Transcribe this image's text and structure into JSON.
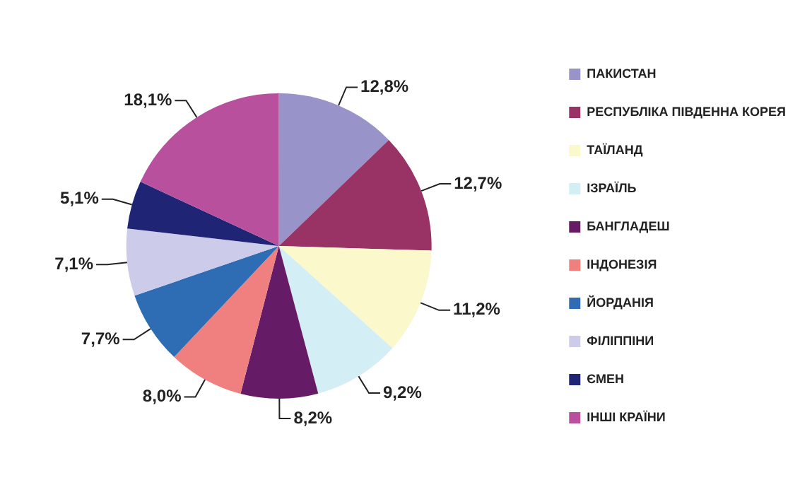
{
  "chart_data": {
    "type": "pie",
    "categories": [
      "ПАКИСТАН",
      "РЕСПУБЛІКА ПІВДЕННА КОРЕЯ",
      "ТАЇЛАНД",
      "ІЗРАЇЛЬ",
      "БАНГЛАДЕШ",
      "ІНДОНЕЗІЯ",
      "ЙОРДАНІЯ",
      "ФІЛІППІНИ",
      "ЄМЕН",
      "ІНШІ КРАЇНИ"
    ],
    "values": [
      12.8,
      12.7,
      11.2,
      9.2,
      8.2,
      8.0,
      7.7,
      7.1,
      5.1,
      18.1
    ],
    "colors": [
      "#9893c8",
      "#993366",
      "#fbf8cc",
      "#d4eef6",
      "#661b66",
      "#f08080",
      "#2e6db4",
      "#ccccea",
      "#1f2474",
      "#b9509e"
    ],
    "value_labels": [
      "12,8%",
      "12,7%",
      "11,2%",
      "9,2%",
      "8,2%",
      "8,0%",
      "7,7%",
      "7,1%",
      "5,1%",
      "18,1%"
    ],
    "legend": "right"
  }
}
